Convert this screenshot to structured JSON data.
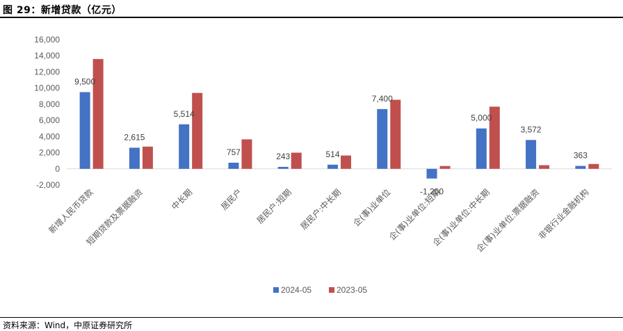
{
  "header": {
    "title": "图 29：新增贷款（亿元）"
  },
  "footer": {
    "source": "资料来源：Wind，中原证券研究所"
  },
  "chart_data": {
    "type": "bar",
    "categories": [
      "新增人民币贷款",
      "短期贷款及票据融资",
      "中长期",
      "居民户",
      "居民户:短期",
      "居民户:中长期",
      "企(事)业单位",
      "企(事)业单位:短期",
      "企(事)业单位:中长期",
      "企(事)业单位:票据融资",
      "非银行业金融机构"
    ],
    "series": [
      {
        "name": "2024-05",
        "color": "#4472C4",
        "values": [
          9500,
          2615,
          5514,
          757,
          243,
          514,
          7400,
          -1200,
          5000,
          3572,
          363
        ]
      },
      {
        "name": "2023-05",
        "color": "#C0504D",
        "values": [
          13600,
          2750,
          9400,
          3650,
          2000,
          1650,
          8550,
          350,
          7700,
          450,
          600
        ]
      }
    ],
    "data_labels": [
      "9,500",
      "2,615",
      "5,514",
      "757",
      "243",
      "514",
      "7,400",
      "-1,200",
      "5,000",
      "3,572",
      "363"
    ],
    "y_ticks": [
      "16,000",
      "14,000",
      "12,000",
      "10,000",
      "8,000",
      "6,000",
      "4,000",
      "2,000",
      "0",
      "-2,000"
    ],
    "ylim": [
      -2000,
      16000
    ],
    "legend_position": "bottom-center",
    "grid": false
  }
}
